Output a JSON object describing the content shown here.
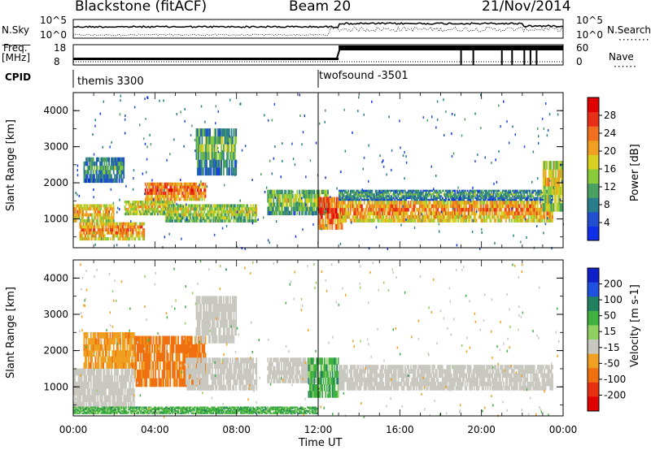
{
  "header": {
    "station": "Blackstone (fitACF)",
    "beam": "Beam 20",
    "date": "21/Nov/2014"
  },
  "top_panels": {
    "nsky_label": "N.Sky",
    "nsearch_label": "N.Search",
    "nsky_ticks": [
      "10^5",
      "10^0"
    ],
    "nsky_ticks_right": [
      "10^5",
      "10^0"
    ],
    "freq_label": "Freq.",
    "freq_unit": "[MHz]",
    "freq_ticks": [
      "18",
      "8"
    ],
    "nave_label": "Nave",
    "nave_ticks": [
      "60",
      "0"
    ],
    "cpid_label": "CPID",
    "cpid_segments": [
      "themis 3300",
      "twofsound -3501"
    ]
  },
  "chart_data": [
    {
      "type": "heatmap",
      "panel": "power",
      "ylabel": "Slant Range [km]",
      "yticks": [
        "1000",
        "2000",
        "3000",
        "4000"
      ],
      "ylim": [
        200,
        4500
      ],
      "xlim": [
        "00:00",
        "24:00"
      ],
      "colorbar": {
        "label": "Power [dB]",
        "ticks": [
          "4",
          "8",
          "12",
          "16",
          "20",
          "24",
          "28"
        ],
        "colors": [
          "#1030e8",
          "#2050d0",
          "#2a7d8a",
          "#4aa060",
          "#8acb3c",
          "#d8d020",
          "#f0a020",
          "#f07020",
          "#e83018",
          "#e00000"
        ]
      },
      "bands": [
        {
          "t0": 0.0,
          "t1": 2.0,
          "r0": 900,
          "r1": 1400,
          "level": 20
        },
        {
          "t0": 0.3,
          "t1": 3.5,
          "r0": 400,
          "r1": 900,
          "level": 22
        },
        {
          "t0": 0.5,
          "t1": 2.5,
          "r0": 2000,
          "r1": 2700,
          "level": 10
        },
        {
          "t0": 2.5,
          "t1": 5.0,
          "r0": 1100,
          "r1": 1500,
          "level": 18
        },
        {
          "t0": 3.5,
          "t1": 6.5,
          "r0": 1500,
          "r1": 2000,
          "level": 24
        },
        {
          "t0": 4.5,
          "t1": 9.0,
          "r0": 900,
          "r1": 1400,
          "level": 16
        },
        {
          "t0": 6.0,
          "t1": 8.0,
          "r0": 2200,
          "r1": 3500,
          "level": 12
        },
        {
          "t0": 9.5,
          "t1": 12.5,
          "r0": 1100,
          "r1": 1800,
          "level": 14
        },
        {
          "t0": 12.0,
          "t1": 13.2,
          "r0": 700,
          "r1": 1600,
          "level": 26
        },
        {
          "t0": 13.0,
          "t1": 23.5,
          "r0": 900,
          "r1": 1500,
          "level": 22
        },
        {
          "t0": 13.0,
          "t1": 23.5,
          "r0": 1500,
          "r1": 1800,
          "level": 10
        },
        {
          "t0": 23.0,
          "t1": 24.0,
          "r0": 1200,
          "r1": 2600,
          "level": 18
        }
      ]
    },
    {
      "type": "heatmap",
      "panel": "velocity",
      "ylabel": "Slant Range [km]",
      "yticks": [
        "1000",
        "2000",
        "3000",
        "4000"
      ],
      "ylim": [
        200,
        4500
      ],
      "xlim": [
        "00:00",
        "24:00"
      ],
      "xticks": [
        "00:00",
        "04:00",
        "08:00",
        "12:00",
        "16:00",
        "20:00",
        "00:00"
      ],
      "xlabel": "Time UT",
      "colorbar": {
        "label": "Velocity [m s-1]",
        "ticks": [
          "200",
          "100",
          "50",
          "15",
          "-15",
          "-50",
          "-100",
          "-200"
        ],
        "colors": [
          "#1020c8",
          "#2050e0",
          "#208060",
          "#40b040",
          "#90d060",
          "#c8c8c0",
          "#f0a020",
          "#f07010",
          "#e83010",
          "#e00000"
        ]
      },
      "bands": [
        {
          "t0": 0.0,
          "t1": 3.0,
          "r0": 400,
          "r1": 1500,
          "v": 0
        },
        {
          "t0": 0.5,
          "t1": 3.0,
          "r0": 1500,
          "r1": 2500,
          "v": -40
        },
        {
          "t0": 3.0,
          "t1": 6.5,
          "r0": 1000,
          "r1": 2400,
          "v": -60
        },
        {
          "t0": 5.5,
          "t1": 9.0,
          "r0": 900,
          "r1": 1800,
          "v": 0
        },
        {
          "t0": 6.0,
          "t1": 8.0,
          "r0": 2200,
          "r1": 3500,
          "v": 0
        },
        {
          "t0": 9.5,
          "t1": 12.0,
          "r0": 1100,
          "r1": 1800,
          "v": 0
        },
        {
          "t0": 11.5,
          "t1": 13.0,
          "r0": 700,
          "r1": 1800,
          "v": 30
        },
        {
          "t0": 13.0,
          "t1": 23.5,
          "r0": 900,
          "r1": 1600,
          "v": 0
        },
        {
          "t0": 0.0,
          "t1": 12.0,
          "r0": 250,
          "r1": 450,
          "v": 30
        }
      ]
    }
  ]
}
